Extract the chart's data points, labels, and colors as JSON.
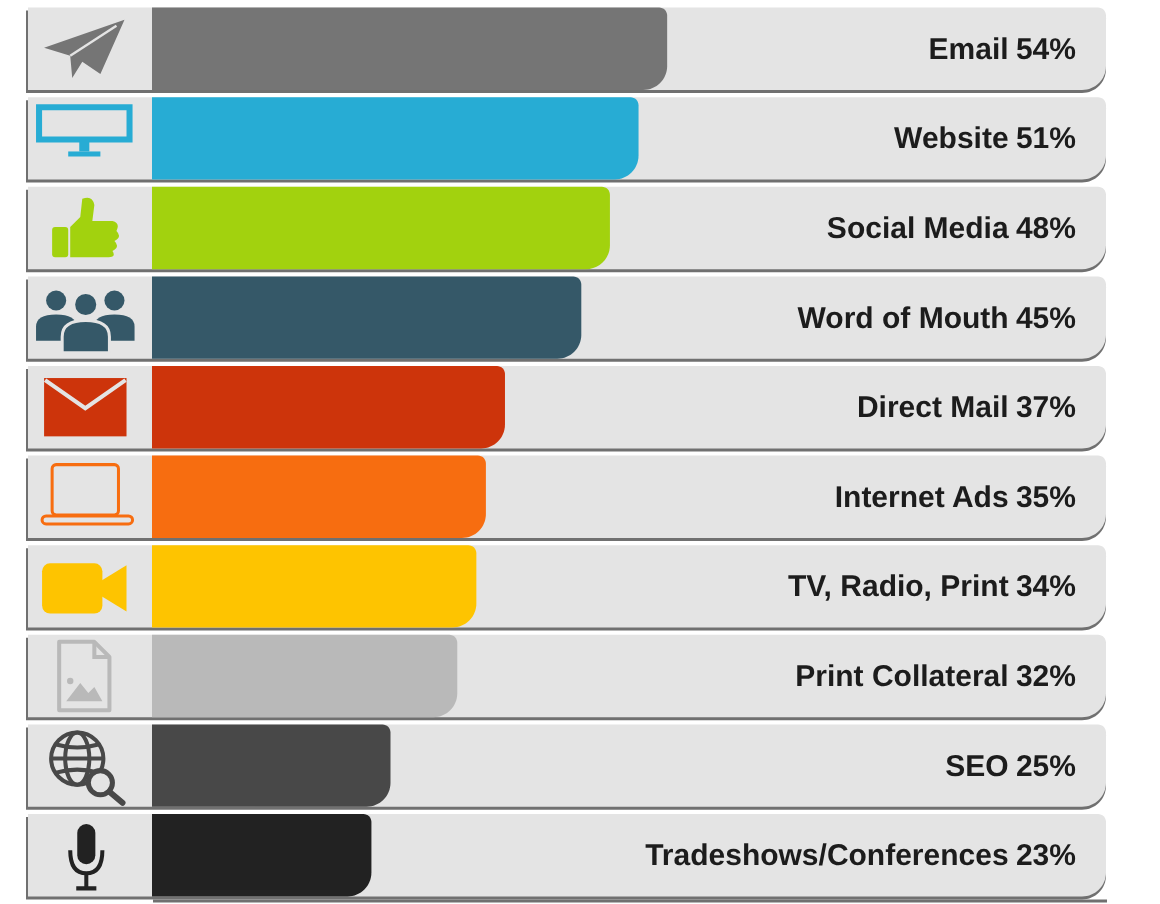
{
  "chart_data": {
    "type": "bar",
    "orientation": "horizontal",
    "categories": [
      "Email",
      "Website",
      "Social Media",
      "Word of Mouth",
      "Direct Mail",
      "Internet Ads",
      "TV, Radio, Print",
      "Print Collateral",
      "SEO",
      "Tradeshows/Conferences"
    ],
    "values": [
      54,
      51,
      48,
      45,
      37,
      35,
      34,
      32,
      25,
      23
    ],
    "value_labels": [
      "54%",
      "51%",
      "48%",
      "45%",
      "37%",
      "35%",
      "34%",
      "32%",
      "25%",
      "23%"
    ],
    "colors": [
      "#757575",
      "#27acd4",
      "#a2d20e",
      "#355868",
      "#cd340b",
      "#f76d10",
      "#fec400",
      "#b9b9b9",
      "#484848",
      "#222222"
    ],
    "xlim": [
      0,
      100
    ],
    "tick_labels": "y"
  }
}
